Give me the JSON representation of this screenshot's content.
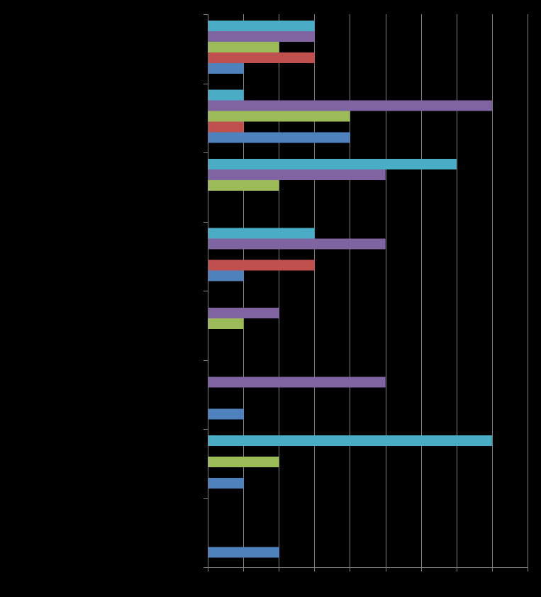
{
  "chart_data": {
    "type": "bar",
    "orientation": "horizontal",
    "background": "#000000",
    "grid": true,
    "gridColor": "#808080",
    "title": "",
    "xlabel": "",
    "ylabel": "",
    "xlim": [
      0,
      9
    ],
    "xTickStep": 1,
    "categoryCount": 8,
    "barsPerCategory": 5,
    "series": [
      {
        "color": "#4F81BD",
        "values": [
          1,
          4,
          0,
          1,
          0,
          1,
          1,
          2
        ]
      },
      {
        "color": "#C0504D",
        "values": [
          3,
          1,
          0,
          3,
          0,
          0,
          0,
          0
        ]
      },
      {
        "color": "#9BBB59",
        "values": [
          2,
          4,
          2,
          0,
          1,
          0,
          2,
          0
        ]
      },
      {
        "color": "#8064A2",
        "values": [
          3,
          8,
          5,
          5,
          2,
          5,
          0,
          0
        ]
      },
      {
        "color": "#4BACC6",
        "values": [
          3,
          1,
          7,
          3,
          0,
          0,
          8,
          0
        ]
      }
    ]
  }
}
